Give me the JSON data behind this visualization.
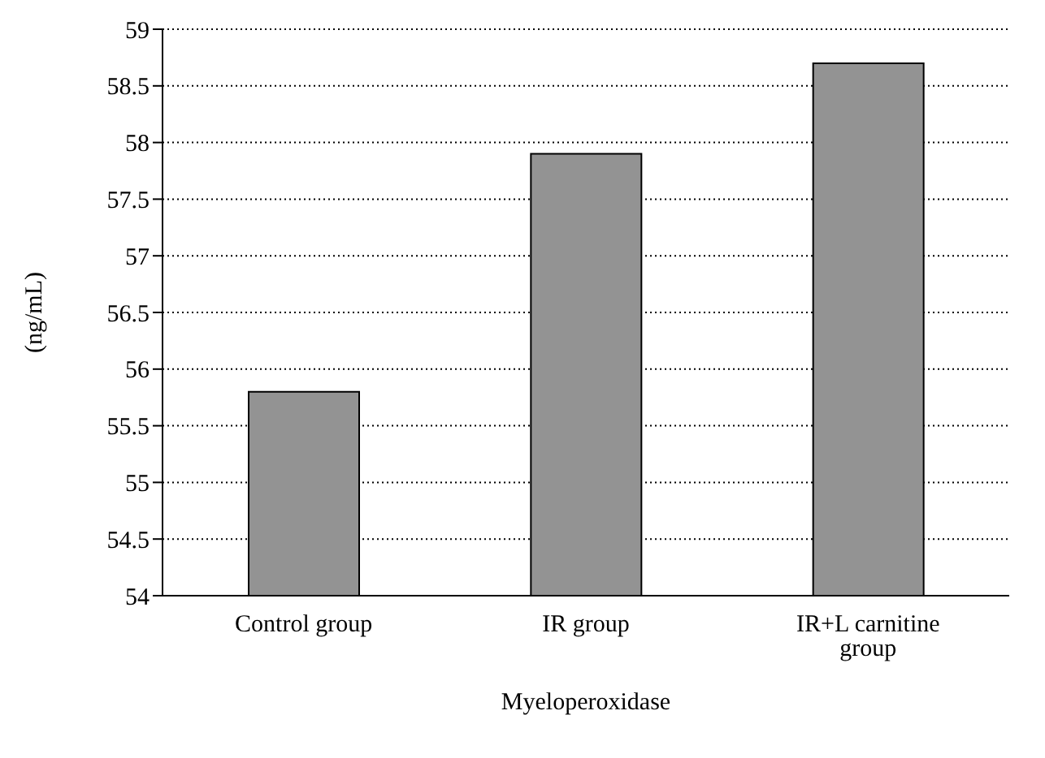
{
  "chart_data": {
    "type": "bar",
    "xlabel": "Myeloperoxidase",
    "ylabel": "(ng/mL)",
    "categories": [
      "Control group",
      "IR group",
      "IR+L carnitine group"
    ],
    "values": [
      55.8,
      57.9,
      58.7
    ],
    "color": "#939393",
    "ylim": [
      54,
      59
    ],
    "yticks": [
      54,
      54.5,
      55,
      55.5,
      56,
      56.5,
      57,
      57.5,
      58,
      58.5,
      59
    ],
    "grid": "y"
  }
}
